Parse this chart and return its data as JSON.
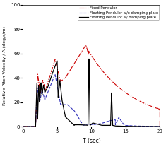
{
  "title": "",
  "xlabel": "T (sec)",
  "ylabel": "Relative Pitch Velocity / A (deg/s/m)",
  "xlim": [
    0,
    20
  ],
  "ylim": [
    0,
    100
  ],
  "xticks": [
    0,
    5,
    10,
    15,
    20
  ],
  "yticks": [
    0,
    20,
    40,
    60,
    80,
    100
  ],
  "legend": [
    {
      "label": "Fixed Pendulor",
      "color": "#cc0000",
      "linestyle": "dashdot",
      "linewidth": 0.8
    },
    {
      "label": "Floating Pendulor w/o damping plate",
      "color": "#3333bb",
      "linestyle": "dashed",
      "linewidth": 0.8
    },
    {
      "label": "Floating Pendulor w/ damping plate",
      "color": "#000000",
      "linestyle": "solid",
      "linewidth": 0.9
    }
  ],
  "background_color": "#ffffff",
  "figsize": [
    2.35,
    2.08
  ],
  "dpi": 100
}
